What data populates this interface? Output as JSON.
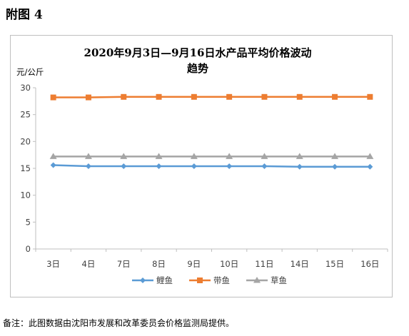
{
  "figure_label": "附图 4",
  "note": "备注：此图数据由沈阳市发展和改革委员会价格监测局提供。",
  "chart_data": {
    "type": "line",
    "title_line1": "2020年9月3日—9月16日水产品平均价格波动",
    "title_line2": "趋势",
    "ylabel": "元/公斤",
    "categories": [
      "3日",
      "4日",
      "7日",
      "8日",
      "9日",
      "10日",
      "11日",
      "14日",
      "15日",
      "16日"
    ],
    "ylim": [
      0,
      30
    ],
    "yticks": [
      0,
      5,
      10,
      15,
      20,
      25,
      30
    ],
    "grid": false,
    "legend_position": "bottom",
    "series": [
      {
        "name": "鲤鱼",
        "color": "#5b9bd5",
        "marker": "diamond",
        "values": [
          15.6,
          15.4,
          15.4,
          15.4,
          15.4,
          15.4,
          15.4,
          15.3,
          15.3,
          15.3
        ]
      },
      {
        "name": "带鱼",
        "color": "#ed7d31",
        "marker": "square",
        "values": [
          28.2,
          28.2,
          28.3,
          28.3,
          28.3,
          28.3,
          28.3,
          28.3,
          28.3,
          28.3
        ]
      },
      {
        "name": "草鱼",
        "color": "#a5a5a5",
        "marker": "triangle",
        "values": [
          17.2,
          17.2,
          17.2,
          17.2,
          17.2,
          17.2,
          17.2,
          17.2,
          17.2,
          17.2
        ]
      }
    ]
  }
}
